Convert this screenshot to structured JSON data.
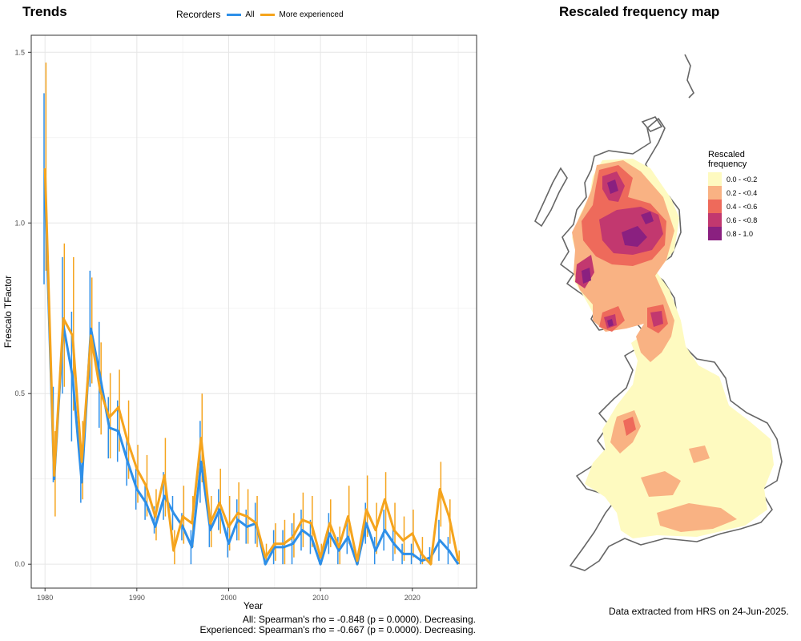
{
  "trend_title": "Trends",
  "map_title": "Rescaled frequency map",
  "legend": {
    "title": "Recorders",
    "items": [
      {
        "label": "All",
        "color": "#2E8FE8"
      },
      {
        "label": "More experienced",
        "color": "#F5A41D"
      }
    ]
  },
  "stats": {
    "line1": "All: Spearman's rho = -0.848 (p = 0.0000). Decreasing.",
    "line2": "Experienced: Spearman's rho = -0.667 (p = 0.0000). Decreasing."
  },
  "extract_note": "Data extracted from HRS on 24-Jun-2025.",
  "map_legend": {
    "title_line1": "Rescaled",
    "title_line2": "frequency",
    "items": [
      {
        "label": "0.0 - <0.2",
        "color": "#FEFAC0"
      },
      {
        "label": "0.2 - <0.4",
        "color": "#F9B283"
      },
      {
        "label": "0.4 - <0.6",
        "color": "#EE6A5B"
      },
      {
        "label": "0.6 - <0.8",
        "color": "#C2386F"
      },
      {
        "label": "0.8 - 1.0",
        "color": "#8A2080"
      }
    ]
  },
  "chart_data": {
    "type": "line",
    "title": "Trends",
    "xlabel": "Year",
    "ylabel": "Frescalo TFactor",
    "xlim": [
      1978.5,
      2027
    ],
    "ylim": [
      -0.07,
      1.55
    ],
    "xticks": [
      1980,
      1990,
      2000,
      2010,
      2020
    ],
    "yticks": [
      0.0,
      0.5,
      1.0,
      1.5
    ],
    "ytick_labels": [
      "0.0",
      "0.5",
      "1.0",
      "1.5"
    ],
    "grid": true,
    "legend_position": "top",
    "x": [
      1980,
      1981,
      1982,
      1983,
      1984,
      1985,
      1986,
      1987,
      1988,
      1989,
      1990,
      1991,
      1992,
      1993,
      1994,
      1995,
      1996,
      1997,
      1998,
      1999,
      2000,
      2001,
      2002,
      2003,
      2004,
      2005,
      2006,
      2007,
      2008,
      2009,
      2010,
      2011,
      2012,
      2013,
      2014,
      2015,
      2016,
      2017,
      2018,
      2019,
      2020,
      2021,
      2022,
      2023,
      2024,
      2025
    ],
    "series": [
      {
        "name": "All",
        "color": "#2E8FE8",
        "values": [
          1.1,
          0.25,
          0.7,
          0.55,
          0.24,
          0.69,
          0.55,
          0.4,
          0.39,
          0.3,
          0.22,
          0.18,
          0.11,
          0.2,
          0.15,
          0.11,
          0.05,
          0.3,
          0.1,
          0.16,
          0.06,
          0.13,
          0.11,
          0.12,
          0.0,
          0.05,
          0.05,
          0.06,
          0.1,
          0.08,
          0.0,
          0.09,
          0.04,
          0.08,
          0.0,
          0.12,
          0.04,
          0.1,
          0.06,
          0.03,
          0.03,
          0.01,
          0.02,
          0.07,
          0.04,
          0.0
        ],
        "err_low": [
          0.82,
          0.24,
          0.5,
          0.36,
          0.18,
          0.52,
          0.4,
          0.31,
          0.3,
          0.23,
          0.16,
          0.13,
          0.09,
          0.13,
          0.1,
          0.07,
          0.0,
          0.18,
          0.05,
          0.1,
          0.02,
          0.07,
          0.06,
          0.06,
          0.0,
          0.0,
          0.0,
          0.0,
          0.04,
          0.03,
          0.0,
          0.03,
          0.0,
          0.03,
          0.0,
          0.06,
          0.0,
          0.04,
          0.01,
          0.0,
          0.0,
          0.0,
          0.0,
          0.01,
          0.0,
          0.0
        ],
        "err_high": [
          1.38,
          0.52,
          0.9,
          0.74,
          0.31,
          0.86,
          0.71,
          0.49,
          0.48,
          0.37,
          0.28,
          0.23,
          0.17,
          0.27,
          0.2,
          0.15,
          0.1,
          0.42,
          0.15,
          0.22,
          0.12,
          0.19,
          0.16,
          0.18,
          0.02,
          0.1,
          0.1,
          0.12,
          0.16,
          0.13,
          0.02,
          0.15,
          0.08,
          0.13,
          0.02,
          0.18,
          0.08,
          0.16,
          0.11,
          0.06,
          0.06,
          0.03,
          0.05,
          0.13,
          0.08,
          0.02
        ]
      },
      {
        "name": "More experienced",
        "color": "#F5A41D",
        "values": [
          1.16,
          0.26,
          0.72,
          0.67,
          0.3,
          0.67,
          0.51,
          0.43,
          0.46,
          0.36,
          0.28,
          0.23,
          0.14,
          0.26,
          0.04,
          0.14,
          0.12,
          0.37,
          0.12,
          0.18,
          0.11,
          0.15,
          0.14,
          0.12,
          0.02,
          0.06,
          0.06,
          0.08,
          0.13,
          0.12,
          0.02,
          0.12,
          0.05,
          0.14,
          0.01,
          0.16,
          0.1,
          0.19,
          0.1,
          0.07,
          0.09,
          0.03,
          0.0,
          0.22,
          0.14,
          0.01
        ],
        "err_low": [
          0.86,
          0.14,
          0.52,
          0.45,
          0.19,
          0.53,
          0.38,
          0.31,
          0.33,
          0.25,
          0.18,
          0.14,
          0.07,
          0.14,
          0.0,
          0.06,
          0.05,
          0.24,
          0.05,
          0.09,
          0.04,
          0.07,
          0.06,
          0.05,
          0.0,
          0.01,
          0.0,
          0.02,
          0.05,
          0.05,
          0.0,
          0.05,
          0.0,
          0.06,
          0.0,
          0.08,
          0.03,
          0.1,
          0.03,
          0.01,
          0.02,
          0.0,
          0.0,
          0.11,
          0.06,
          0.0
        ],
        "err_high": [
          1.47,
          0.39,
          0.94,
          0.9,
          0.42,
          0.84,
          0.65,
          0.56,
          0.57,
          0.48,
          0.35,
          0.32,
          0.22,
          0.37,
          0.1,
          0.23,
          0.2,
          0.5,
          0.2,
          0.28,
          0.2,
          0.24,
          0.22,
          0.2,
          0.06,
          0.12,
          0.13,
          0.15,
          0.21,
          0.2,
          0.06,
          0.19,
          0.11,
          0.23,
          0.04,
          0.26,
          0.18,
          0.27,
          0.18,
          0.14,
          0.16,
          0.08,
          0.03,
          0.3,
          0.19,
          0.04
        ]
      }
    ]
  }
}
